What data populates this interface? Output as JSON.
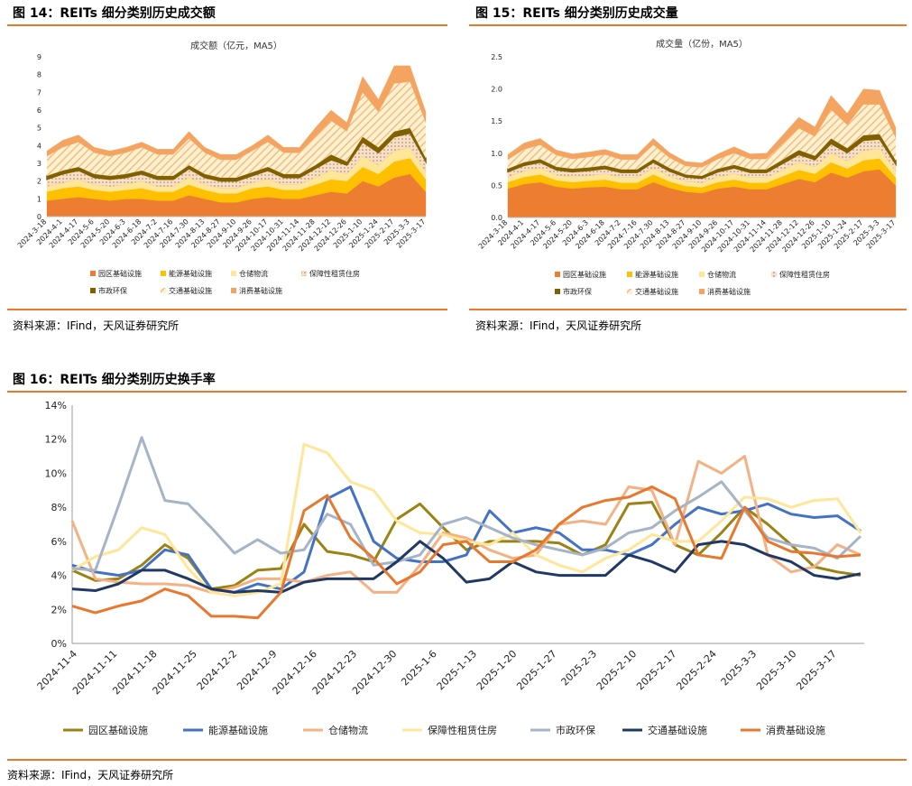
{
  "figures": {
    "fig14": {
      "title": "图 14：REITs 细分类别历史成交额",
      "source": "资料来源：IFind，天风证券研究所"
    },
    "fig15": {
      "title": "图 15：REITs 细分类别历史成交量",
      "source": "资料来源：IFind，天风证券研究所"
    },
    "fig16": {
      "title": "图 16：REITs 细分类别历史换手率",
      "source": "资料来源：IFind，天风证券研究所"
    }
  },
  "chart_data": [
    {
      "id": "fig14",
      "type": "area",
      "stacked": true,
      "title": "成交额（亿元，MA5）",
      "ylim": [
        0,
        9
      ],
      "yticks": [
        "0",
        "1",
        "2",
        "3",
        "4",
        "5",
        "6",
        "7",
        "8",
        "9"
      ],
      "x_ticks": [
        "2024-3-18",
        "2024-4-1",
        "2024-4-17",
        "2024-5-6",
        "2024-5-20",
        "2024-6-3",
        "2024-6-18",
        "2024-7-2",
        "2024-7-16",
        "2024-7-30",
        "2024-8-13",
        "2024-8-27",
        "2024-9-10",
        "2024-9-26",
        "2024-10-17",
        "2024-10-31",
        "2024-11-14",
        "2024-11-28",
        "2024-12-12",
        "2024-12-26",
        "2025-1-10",
        "2025-1-24",
        "2025-2-17",
        "2025-3-3",
        "2025-3-17"
      ],
      "series": [
        {
          "name": "园区基础设施",
          "color": "#ED7D31",
          "values": [
            0.9,
            1.0,
            1.1,
            1.0,
            0.9,
            1.0,
            1.0,
            0.9,
            0.9,
            1.2,
            1.0,
            0.8,
            0.8,
            1.0,
            1.1,
            1.0,
            1.0,
            1.2,
            1.4,
            1.3,
            2.0,
            1.7,
            2.2,
            2.4,
            1.4
          ]
        },
        {
          "name": "能源基础设施",
          "color": "#FFC000",
          "values": [
            0.5,
            0.6,
            0.6,
            0.5,
            0.5,
            0.5,
            0.6,
            0.5,
            0.5,
            0.6,
            0.5,
            0.5,
            0.5,
            0.6,
            0.6,
            0.5,
            0.5,
            0.6,
            0.7,
            0.7,
            0.8,
            0.7,
            0.9,
            0.9,
            0.7
          ]
        },
        {
          "name": "仓储物流",
          "color": "#FFE699",
          "values": [
            0.3,
            0.3,
            0.4,
            0.3,
            0.3,
            0.3,
            0.4,
            0.3,
            0.3,
            0.4,
            0.3,
            0.3,
            0.3,
            0.3,
            0.4,
            0.3,
            0.3,
            0.4,
            0.5,
            0.4,
            0.6,
            0.5,
            0.6,
            0.6,
            0.4
          ]
        },
        {
          "name": "保障性租赁住房",
          "color": "#F4B183",
          "values": [
            0.4,
            0.5,
            0.5,
            0.4,
            0.4,
            0.4,
            0.4,
            0.4,
            0.4,
            0.5,
            0.4,
            0.4,
            0.4,
            0.4,
            0.5,
            0.4,
            0.4,
            0.5,
            0.6,
            0.5,
            0.8,
            0.7,
            0.8,
            0.8,
            0.6
          ]
        },
        {
          "name": "市政环保",
          "color": "#806000",
          "values": [
            0.2,
            0.2,
            0.2,
            0.2,
            0.2,
            0.2,
            0.2,
            0.2,
            0.2,
            0.2,
            0.2,
            0.2,
            0.2,
            0.2,
            0.2,
            0.2,
            0.2,
            0.2,
            0.3,
            0.2,
            0.3,
            0.3,
            0.3,
            0.3,
            0.2
          ]
        },
        {
          "name": "交通基础设施",
          "color": "#FFF2CC",
          "values": [
            1.1,
            1.3,
            1.4,
            1.2,
            1.1,
            1.2,
            1.3,
            1.2,
            1.2,
            1.5,
            1.2,
            1.0,
            1.0,
            1.2,
            1.4,
            1.2,
            1.2,
            1.6,
            1.9,
            1.7,
            2.5,
            2.0,
            2.7,
            2.6,
            2.0
          ]
        },
        {
          "name": "消费基础设施",
          "color": "#F4A460",
          "values": [
            0.3,
            0.4,
            0.4,
            0.3,
            0.3,
            0.3,
            0.3,
            0.3,
            0.3,
            0.4,
            0.3,
            0.3,
            0.3,
            0.3,
            0.4,
            0.3,
            0.3,
            0.5,
            0.6,
            0.5,
            0.9,
            0.7,
            1.0,
            0.9,
            0.6
          ]
        }
      ]
    },
    {
      "id": "fig15",
      "type": "area",
      "stacked": true,
      "title": "成交量（亿份，MA5）",
      "ylim": [
        0,
        2.5
      ],
      "yticks": [
        "0.0",
        "0.5",
        "1.0",
        "1.5",
        "2.0",
        "2.5"
      ],
      "x_ticks": [
        "2024-3-18",
        "2024-4-1",
        "2024-4-17",
        "2024-5-6",
        "2024-5-20",
        "2024-6-3",
        "2024-6-18",
        "2024-7-2",
        "2024-7-16",
        "2024-7-30",
        "2024-8-13",
        "2024-8-27",
        "2024-9-10",
        "2024-9-26",
        "2024-10-17",
        "2024-10-31",
        "2024-11-14",
        "2024-11-28",
        "2024-12-12",
        "2024-12-26",
        "2025-1-10",
        "2025-1-24",
        "2025-2-17",
        "2025-3-3",
        "2025-3-17"
      ],
      "series": [
        {
          "name": "园区基础设施",
          "color": "#ED7D31",
          "values": [
            0.45,
            0.52,
            0.55,
            0.48,
            0.45,
            0.47,
            0.48,
            0.44,
            0.44,
            0.55,
            0.46,
            0.4,
            0.38,
            0.45,
            0.48,
            0.44,
            0.44,
            0.52,
            0.6,
            0.55,
            0.7,
            0.62,
            0.72,
            0.75,
            0.5
          ]
        },
        {
          "name": "能源基础设施",
          "color": "#FFC000",
          "values": [
            0.1,
            0.11,
            0.12,
            0.1,
            0.1,
            0.1,
            0.11,
            0.1,
            0.1,
            0.12,
            0.1,
            0.09,
            0.09,
            0.1,
            0.11,
            0.1,
            0.1,
            0.12,
            0.14,
            0.13,
            0.16,
            0.14,
            0.17,
            0.17,
            0.12
          ]
        },
        {
          "name": "仓储物流",
          "color": "#FFE699",
          "values": [
            0.08,
            0.09,
            0.1,
            0.08,
            0.08,
            0.08,
            0.09,
            0.08,
            0.08,
            0.1,
            0.08,
            0.07,
            0.07,
            0.08,
            0.09,
            0.08,
            0.08,
            0.1,
            0.12,
            0.11,
            0.14,
            0.12,
            0.15,
            0.15,
            0.1
          ]
        },
        {
          "name": "保障性租赁住房",
          "color": "#F4B183",
          "values": [
            0.08,
            0.09,
            0.09,
            0.08,
            0.08,
            0.08,
            0.08,
            0.08,
            0.08,
            0.09,
            0.08,
            0.07,
            0.07,
            0.08,
            0.09,
            0.08,
            0.08,
            0.1,
            0.12,
            0.11,
            0.15,
            0.13,
            0.16,
            0.15,
            0.11
          ]
        },
        {
          "name": "市政环保",
          "color": "#806000",
          "values": [
            0.05,
            0.05,
            0.05,
            0.05,
            0.05,
            0.05,
            0.05,
            0.05,
            0.05,
            0.05,
            0.05,
            0.04,
            0.04,
            0.05,
            0.05,
            0.05,
            0.05,
            0.06,
            0.07,
            0.06,
            0.08,
            0.07,
            0.08,
            0.08,
            0.06
          ]
        },
        {
          "name": "交通基础设施",
          "color": "#FFF2CC",
          "values": [
            0.14,
            0.2,
            0.22,
            0.18,
            0.15,
            0.16,
            0.17,
            0.15,
            0.15,
            0.22,
            0.16,
            0.13,
            0.13,
            0.15,
            0.18,
            0.16,
            0.16,
            0.25,
            0.34,
            0.3,
            0.45,
            0.36,
            0.48,
            0.46,
            0.35
          ]
        },
        {
          "name": "消费基础设施",
          "color": "#F4A460",
          "values": [
            0.08,
            0.1,
            0.1,
            0.08,
            0.08,
            0.08,
            0.08,
            0.08,
            0.08,
            0.1,
            0.08,
            0.07,
            0.07,
            0.08,
            0.1,
            0.08,
            0.09,
            0.13,
            0.17,
            0.15,
            0.22,
            0.18,
            0.24,
            0.22,
            0.16
          ]
        }
      ]
    },
    {
      "id": "fig16",
      "type": "line",
      "ylim": [
        0,
        0.14
      ],
      "yticks": [
        "0%",
        "2%",
        "4%",
        "6%",
        "8%",
        "10%",
        "12%",
        "14%"
      ],
      "x_ticks": [
        "2024-11-4",
        "2024-11-11",
        "2024-11-18",
        "2024-11-25",
        "2024-12-2",
        "2024-12-9",
        "2024-12-16",
        "2024-12-23",
        "2024-12-30",
        "2025-1-6",
        "2025-1-13",
        "2025-1-20",
        "2025-1-27",
        "2025-2-3",
        "2025-2-10",
        "2025-2-17",
        "2025-2-24",
        "2025-3-3",
        "2025-3-10",
        "2025-3-17"
      ],
      "series": [
        {
          "name": "园区基础设施",
          "color": "#9C8213",
          "width": 3,
          "values": [
            4.3,
            3.7,
            3.8,
            4.6,
            5.8,
            5.0,
            3.2,
            3.4,
            4.3,
            4.4,
            7.0,
            5.4,
            5.2,
            4.8,
            7.3,
            8.2,
            6.8,
            5.5,
            6.0,
            6.0,
            6.0,
            5.9,
            5.2,
            5.8,
            8.2,
            8.3,
            5.8,
            5.2,
            6.5,
            8.0,
            7.0,
            5.8,
            4.5,
            4.2,
            4.0
          ]
        },
        {
          "name": "能源基础设施",
          "color": "#4472C4",
          "width": 3,
          "values": [
            4.6,
            4.2,
            4.0,
            4.3,
            5.5,
            5.2,
            3.2,
            3.0,
            3.5,
            3.2,
            4.2,
            8.5,
            9.2,
            6.0,
            5.0,
            4.8,
            4.8,
            5.2,
            7.8,
            6.5,
            6.8,
            6.5,
            5.5,
            5.5,
            5.2,
            5.8,
            7.0,
            8.0,
            7.6,
            7.8,
            8.2,
            7.6,
            7.4,
            7.5,
            6.6
          ]
        },
        {
          "name": "仓储物流",
          "color": "#F4B183",
          "width": 3,
          "values": [
            7.2,
            3.8,
            3.6,
            3.5,
            3.5,
            3.4,
            3.0,
            3.3,
            3.8,
            3.8,
            3.6,
            4.0,
            4.2,
            3.0,
            3.0,
            4.6,
            6.5,
            6.2,
            5.5,
            5.0,
            5.2,
            7.0,
            7.2,
            7.0,
            9.2,
            9.0,
            5.8,
            10.7,
            10.0,
            11.0,
            5.2,
            4.2,
            4.5,
            5.8,
            5.2
          ]
        },
        {
          "name": "保障性租赁住房",
          "color": "#FFE699",
          "width": 3,
          "values": [
            4.3,
            5.1,
            5.5,
            6.8,
            6.4,
            4.4,
            3.0,
            2.8,
            3.0,
            3.5,
            11.7,
            11.2,
            9.5,
            9.0,
            7.2,
            6.5,
            6.4,
            6.0,
            5.8,
            6.5,
            5.2,
            4.6,
            4.2,
            5.0,
            5.5,
            6.4,
            6.0,
            6.0,
            7.2,
            8.6,
            8.5,
            8.0,
            8.4,
            8.5,
            6.5
          ]
        },
        {
          "name": "市政环保",
          "color": "#A6B4C8",
          "width": 3,
          "values": [
            4.4,
            4.3,
            8.1,
            12.1,
            8.4,
            8.2,
            6.8,
            5.3,
            6.1,
            5.3,
            5.5,
            7.6,
            7.0,
            4.6,
            4.8,
            5.2,
            7.0,
            7.4,
            6.8,
            6.2,
            5.8,
            5.5,
            5.2,
            5.6,
            6.5,
            6.8,
            7.8,
            8.6,
            9.5,
            7.8,
            6.2,
            5.8,
            5.6,
            5.0,
            6.3
          ]
        },
        {
          "name": "交通基础设施",
          "color": "#1F3864",
          "width": 3,
          "values": [
            3.2,
            3.1,
            3.5,
            4.3,
            4.3,
            3.8,
            3.2,
            3.0,
            3.1,
            3.0,
            3.6,
            3.8,
            3.8,
            3.8,
            4.8,
            6.0,
            5.0,
            3.6,
            3.8,
            4.8,
            4.2,
            4.0,
            4.0,
            4.0,
            5.2,
            4.8,
            4.2,
            5.8,
            6.0,
            5.8,
            5.2,
            4.8,
            4.0,
            3.8,
            4.1
          ]
        },
        {
          "name": "消费基础设施",
          "color": "#E8782E",
          "width": 3,
          "values": [
            2.2,
            1.8,
            2.2,
            2.5,
            3.2,
            2.8,
            1.6,
            1.6,
            1.5,
            3.0,
            7.8,
            8.7,
            6.2,
            5.0,
            3.5,
            4.2,
            5.8,
            6.0,
            4.8,
            4.8,
            5.5,
            7.0,
            8.0,
            8.4,
            8.6,
            9.2,
            8.5,
            5.2,
            5.0,
            8.0,
            6.0,
            5.4,
            5.3,
            5.1,
            5.2
          ]
        }
      ]
    }
  ]
}
